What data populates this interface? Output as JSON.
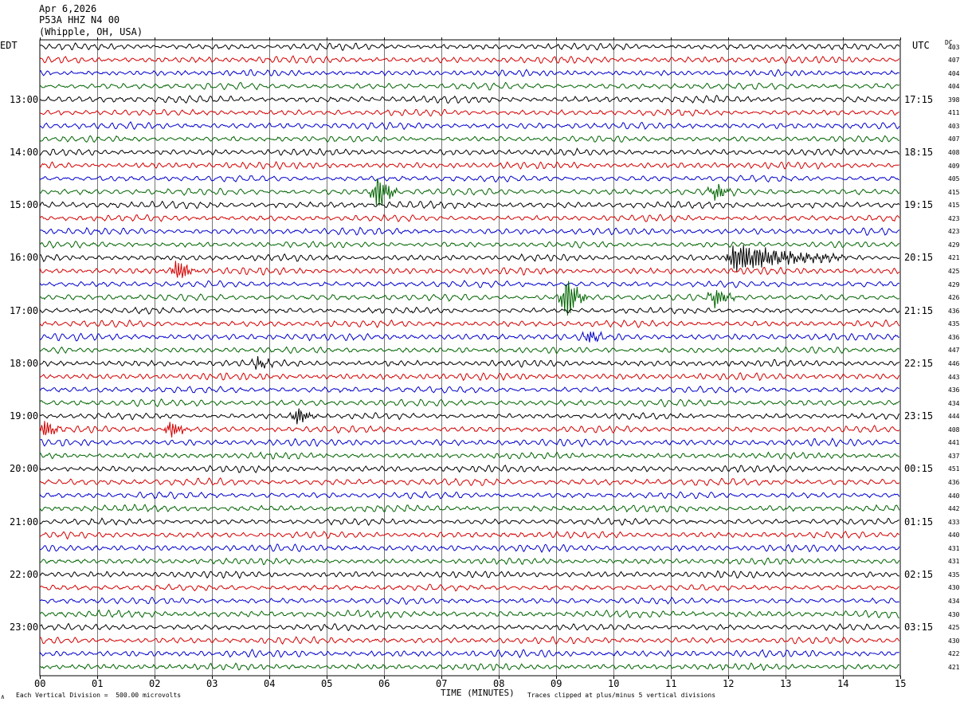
{
  "header": {
    "date": "Apr 6,2026",
    "station": "P53A HHZ N4 00",
    "location": "(Whipple, OH, USA)"
  },
  "left_zone_label": "EDT",
  "right_zone_label": "UTC",
  "dc_label": "DC",
  "footer": {
    "scale_note": "Each Vertical Division =  500.00 microvolts",
    "clip_note": "Traces clipped at plus/minus 5 vertical divisions",
    "corner_mark": "∧"
  },
  "colors": {
    "trace_cycle": [
      "#000000",
      "#d40000",
      "#0000cc",
      "#006400"
    ],
    "grid": "#000000",
    "background": "#ffffff"
  },
  "chart_data": {
    "type": "line",
    "title": "",
    "xlabel": "TIME (MINUTES)",
    "ylabel": "",
    "xlim": [
      0,
      15
    ],
    "x_ticks": [
      "00",
      "01",
      "02",
      "03",
      "04",
      "05",
      "06",
      "07",
      "08",
      "09",
      "10",
      "11",
      "12",
      "13",
      "14",
      "15"
    ],
    "grid": true,
    "minutes_per_line": 15,
    "line_count": 48,
    "left_hour_labels": [
      "13:00",
      "14:00",
      "15:00",
      "16:00",
      "17:00",
      "18:00",
      "19:00",
      "20:00",
      "21:00",
      "22:00",
      "23:00"
    ],
    "right_hour_labels": [
      "17:15",
      "18:15",
      "19:15",
      "20:15",
      "21:15",
      "22:15",
      "23:15",
      "00:15",
      "01:15",
      "02:15",
      "03:15"
    ],
    "hour_label_first_line": 4,
    "dc_offsets": [
      403,
      407,
      404,
      404,
      398,
      411,
      403,
      407,
      408,
      409,
      405,
      415,
      415,
      423,
      423,
      429,
      421,
      425,
      429,
      426,
      436,
      435,
      436,
      447,
      446,
      443,
      436,
      434,
      444,
      408,
      441,
      437,
      451,
      436,
      440,
      442,
      433,
      440,
      431,
      431,
      435,
      430,
      434,
      430,
      425,
      430,
      422,
      421
    ],
    "events": [
      {
        "line": 11,
        "minute": 5.9,
        "amplitude": 3.2
      },
      {
        "line": 11,
        "minute": 11.8,
        "amplitude": 1.3
      },
      {
        "line": 16,
        "minute": 12.1,
        "amplitude": 2.3,
        "coda_minutes": 2.0
      },
      {
        "line": 17,
        "minute": 2.4,
        "amplitude": 2.0
      },
      {
        "line": 19,
        "minute": 9.2,
        "amplitude": 3.5
      },
      {
        "line": 19,
        "minute": 11.8,
        "amplitude": 1.4
      },
      {
        "line": 22,
        "minute": 9.6,
        "amplitude": 0.9
      },
      {
        "line": 24,
        "minute": 3.8,
        "amplitude": 0.9
      },
      {
        "line": 28,
        "minute": 4.5,
        "amplitude": 1.4
      },
      {
        "line": 29,
        "minute": 0.1,
        "amplitude": 1.5
      },
      {
        "line": 29,
        "minute": 2.3,
        "amplitude": 1.6
      }
    ]
  }
}
